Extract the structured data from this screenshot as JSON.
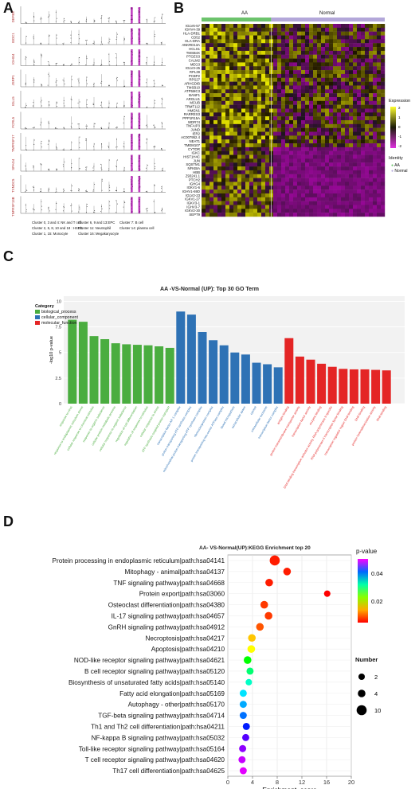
{
  "panel_labels": {
    "a": "A",
    "b": "B",
    "c": "C",
    "d": "D"
  },
  "panel_a": {
    "genes": [
      "DEFB3",
      "IGDC1",
      "IGHG4",
      "JSRP1",
      "IGLL5",
      "FCRL5",
      "TNFRSF17",
      "SPAG4",
      "TXNDC5",
      "TNFRSF13B"
    ],
    "cluster_legend": [
      "Cluster 0, 3 and 4: NK and T cell",
      "Cluster 6, 9 and 13:EPC",
      "Cluster 7: B cell",
      "Cluster 2, 5, 8, 10 and 18 : HSPC",
      "Cluster 11: Neutrophil",
      "Cluster 14: plasma cell",
      "Cluster 1, 15: Monocyte",
      "Cluster 16: Megakaryocyte"
    ],
    "colors": {
      "highlight": "#c040c0",
      "gray": "#888888"
    }
  },
  "panel_b": {
    "groups": [
      "AA",
      "Normal"
    ],
    "group_colors": [
      "#6cc36c",
      "#b3a7d9"
    ],
    "genes": [
      "IGLV6-57",
      "IGHV4-39",
      "HLA-DRB1",
      "CD52",
      "HLA-DRA",
      "ANKRD13A",
      "HCLS1",
      "TMSB4X",
      "PTGES3",
      "CALM2",
      "MEG3",
      "IGLV3-25",
      "RPL39",
      "PCBP2",
      "RPS27",
      "ARHGDIB",
      "TMSB10",
      "ATP5MC3",
      "BANF1",
      "ARGLU1",
      "MCUB",
      "TRMT112",
      "HMGN1",
      "RARRES3",
      "PPP1R15A",
      "WDR74",
      "TNFAIP3",
      "JUND",
      "IER2",
      "AC007952.4",
      "NEAT1",
      "TMEM107",
      "CYTOR",
      "IGKC",
      "HIST1H4C",
      "JUN",
      "SQSTM1",
      "NFKBIA",
      "HBB",
      "Z93241.1",
      "PTCH2",
      "IGHG4",
      "IGKV1-6",
      "IGHV1-69D",
      "IGLV2-23",
      "IGKV1-27",
      "IGKV3-1",
      "IGHV3-7",
      "IGKV2-30",
      "SEPT9"
    ],
    "legend_title": "Expression",
    "legend_ticks": [
      "2",
      "1",
      "0",
      "-1",
      "-2"
    ],
    "identity_title": "Identity",
    "identity_items": [
      "AA",
      "Normal"
    ]
  },
  "panel_c": {
    "title": "AA -VS-Normal (UP): Top 30 GO Term",
    "legend_title": "Category",
    "legend_items": [
      {
        "label": "biological_process",
        "color": "#4aad3f"
      },
      {
        "label": "cellular_component",
        "color": "#2e72b5"
      },
      {
        "label": "molecular_function",
        "color": "#e42525"
      }
    ],
    "ylabel": "-log10 p-value"
  },
  "panel_d": {
    "title": "AA- VS-Normal(UP):KEGG Enrichment top 20",
    "xlabel": "Enrichment_score",
    "colorbar_title": "p-value",
    "colorbar_ticks": [
      "0.04",
      "0.02"
    ],
    "size_title": "Number",
    "size_items": [
      "2",
      "4",
      "10"
    ]
  },
  "chart_data": [
    {
      "type": "bar",
      "title": "AA -VS-Normal (UP): Top 30 GO Term",
      "ylabel": "-log10 p-value",
      "ylim": [
        0,
        10.5
      ],
      "yticks": [
        0,
        2.5,
        5.0,
        7.5,
        10.0
      ],
      "categories": [
        "response to virus",
        "response to endoplasmic reticulum stress",
        "cellular response to chemical stimulus",
        "response to organic substance",
        "cellular protein metabolic process",
        "cellular response to organic substance",
        "regulation of cell differentiation",
        "regulation of response to stimulus",
        "cellular response to stress",
        "ATP synthesis coupled proton transport",
        "transcription factor AP-1 complex",
        "proton-transporting ATP synthase complex",
        "mitochondrial proton-transporting ATP synthase complex",
        "ribonucleoprotein complex",
        "proton-transporting two-sector ATPase complex",
        "blood microparticle",
        "extracellular space",
        "cytosol",
        "extracellular exosome",
        "transcription factor complex",
        "antigen binding",
        "protein transmembrane transporter activity",
        "transcription factor activity",
        "enzyme binding",
        "DNA-binding transcription activator activity, RNA polymerase II-specific",
        "RNA polymerase II transcription factor binding",
        "transcription regulator region DNA binding",
        "DNA binding",
        "protein heterodimerization activity",
        "RNA binding"
      ],
      "values": [
        8.2,
        8.0,
        6.6,
        6.3,
        5.9,
        5.8,
        5.75,
        5.7,
        5.6,
        5.45,
        9.0,
        8.7,
        7.0,
        6.2,
        5.7,
        5.0,
        4.8,
        4.0,
        3.85,
        3.55,
        6.4,
        4.6,
        4.3,
        3.9,
        3.6,
        3.4,
        3.35,
        3.35,
        3.3,
        3.25
      ],
      "category_groups": [
        "biological_process",
        "biological_process",
        "biological_process",
        "biological_process",
        "biological_process",
        "biological_process",
        "biological_process",
        "biological_process",
        "biological_process",
        "biological_process",
        "cellular_component",
        "cellular_component",
        "cellular_component",
        "cellular_component",
        "cellular_component",
        "cellular_component",
        "cellular_component",
        "cellular_component",
        "cellular_component",
        "cellular_component",
        "molecular_function",
        "molecular_function",
        "molecular_function",
        "molecular_function",
        "molecular_function",
        "molecular_function",
        "molecular_function",
        "molecular_function",
        "molecular_function",
        "molecular_function"
      ]
    },
    {
      "type": "scatter",
      "title": "AA- VS-Normal(UP):KEGG Enrichment top 20",
      "xlabel": "Enrichment_score",
      "xlim": [
        0,
        20
      ],
      "xticks": [
        0,
        4,
        8,
        12,
        16,
        20
      ],
      "categories": [
        "Protein processing in endoplasmic reticulum|path:hsa04141",
        "Mitophagy - animal|path:hsa04137",
        "TNF signaling pathway|path:hsa04668",
        "Protein export|path:hsa03060",
        "Osteoclast differentiation|path:hsa04380",
        "IL-17 signaling pathway|path:hsa04657",
        "GnRH signaling pathway|path:hsa04912",
        "Necroptosis|path:hsa04217",
        "Apoptosis|path:hsa04210",
        "NOD-like receptor signaling pathway|path:hsa04621",
        "B cell receptor signaling pathway|path:hsa05120",
        "Biosynthesis of unsaturated fatty acids|path:hsa05140",
        "Fatty acid elongation|path:hsa05169",
        "Autophagy - other|path:hsa05170",
        "TGF-beta signaling pathway|path:hsa04714",
        "Th1 and Th2 cell differentiation|path:hsa04211",
        "NF-kappa B signaling pathway|path:hsa05032",
        "Toll-like receptor signaling pathway|path:hsa05164",
        "T cell receptor signaling pathway|path:hsa04620",
        "Th17 cell differentiation|path:hsa04625"
      ],
      "x": [
        7.6,
        9.6,
        6.7,
        16.1,
        5.9,
        6.6,
        5.2,
        3.9,
        3.8,
        3.2,
        3.6,
        3.4,
        2.5,
        2.5,
        2.5,
        3.0,
        2.9,
        2.4,
        2.3,
        2.5
      ],
      "pvalue": [
        0.002,
        0.002,
        0.002,
        0.001,
        0.003,
        0.003,
        0.004,
        0.008,
        0.01,
        0.019,
        0.023,
        0.026,
        0.029,
        0.031,
        0.033,
        0.036,
        0.04,
        0.042,
        0.044,
        0.045
      ],
      "number": [
        10,
        4,
        4,
        2,
        4,
        4,
        4,
        4,
        4,
        4,
        3,
        2,
        3,
        3,
        3,
        3,
        3,
        3,
        3,
        3
      ]
    }
  ]
}
